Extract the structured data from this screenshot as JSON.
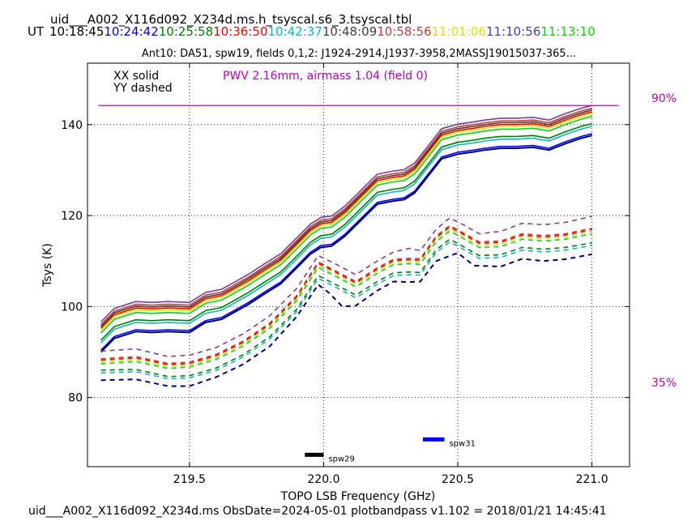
{
  "header": {
    "title": "uid___A002_X116d092_X234d.ms.h_tsyscal.s6_3.tsyscal.tbl",
    "ut_label": "UT",
    "ut_times": [
      {
        "text": "10:18:45",
        "color": "#000000"
      },
      {
        "text": "10:24:42",
        "color": "#0000ff"
      },
      {
        "text": "10:25:58",
        "color": "#008000"
      },
      {
        "text": "10:36:50",
        "color": "#ff0000"
      },
      {
        "text": "10:42:37",
        "color": "#00bfbf"
      },
      {
        "text": "10:48:09",
        "color": "#404040"
      },
      {
        "text": "10:58:56",
        "color": "#c04040"
      },
      {
        "text": "11:01:06",
        "color": "#e0e000"
      },
      {
        "text": "11:10:56",
        "color": "#4040c0"
      },
      {
        "text": "11:13:10",
        "color": "#00e000"
      }
    ],
    "subtitle": "Ant10: DA51,  spw19,  fields 0,1,2: J1924-2914,J1937-3958,2MASSJ19015037-365..."
  },
  "legend": {
    "xx": "XX solid",
    "yy": "YY dashed",
    "pwv": "PWV 2.16mm, airmass 1.04 (field 0)"
  },
  "right_labels": {
    "top": "90%",
    "bottom": "35%"
  },
  "footer": "uid___A002_X116d092_X234d.ms  ObsDate=2024-05-01   plotbandpass v1.102 = 2018/01/21 14:45:41",
  "chart_data": {
    "type": "line",
    "xlabel": "TOPO LSB Frequency (GHz)",
    "ylabel": "Tsys (K)",
    "xlim": [
      219.12,
      221.14
    ],
    "ylim": [
      64.8,
      153.5
    ],
    "xticks": [
      219.5,
      220.0,
      220.5,
      221.0
    ],
    "xtick_labels": [
      "219.5",
      "220.0",
      "220.5",
      "221.0"
    ],
    "yticks": [
      80,
      100,
      120,
      140
    ],
    "ytick_labels": [
      "80",
      "100",
      "120",
      "140"
    ],
    "grid": true,
    "pwv_line": {
      "y": 144.2,
      "x": [
        219.16,
        221.1
      ],
      "color": "#c000c0"
    },
    "markers": [
      {
        "label": "spw29",
        "x": [
          219.93,
          220.0
        ],
        "y": 67.4,
        "color": "#000000"
      },
      {
        "label": "spw31",
        "x": [
          220.37,
          220.45
        ],
        "y": 70.8,
        "color": "#0000ff"
      }
    ],
    "shape_x": [
      219.17,
      219.22,
      219.3,
      219.36,
      219.42,
      219.5,
      219.56,
      219.62,
      219.66,
      219.72,
      219.78,
      219.84,
      219.9,
      219.95,
      219.99,
      220.03,
      220.08,
      220.14,
      220.2,
      220.26,
      220.3,
      220.34,
      220.38,
      220.44,
      220.5,
      220.56,
      220.6,
      220.66,
      220.72,
      220.78,
      220.84,
      220.9,
      220.96,
      221.0
    ],
    "solid_shape": [
      0,
      3,
      4.5,
      4.3,
      4.5,
      4.3,
      6.5,
      7.2,
      8.5,
      10.5,
      12.8,
      15,
      18.5,
      21.5,
      23,
      23.3,
      25.5,
      29,
      32.5,
      33.2,
      33.5,
      35,
      38,
      42.5,
      43.5,
      44,
      44.4,
      44.8,
      44.8,
      45,
      44.4,
      45.8,
      47,
      47.6
    ],
    "series": [
      {
        "style": "solid",
        "color": "#7b3fa0",
        "offset": 96.6
      },
      {
        "style": "solid",
        "color": "#c04040",
        "offset": 96.0
      },
      {
        "style": "solid",
        "color": "#404040",
        "offset": 95.6
      },
      {
        "style": "solid",
        "color": "#ff0000",
        "offset": 95.2
      },
      {
        "style": "solid",
        "color": "#e0e000",
        "offset": 94.8
      },
      {
        "style": "solid",
        "color": "#00e000",
        "offset": 94.2
      },
      {
        "style": "solid",
        "color": "#008000",
        "offset": 92.6
      },
      {
        "style": "solid",
        "color": "#00bfbf",
        "offset": 92.0
      },
      {
        "style": "solid",
        "color": "#0000ff",
        "offset": 90.4
      },
      {
        "style": "solid",
        "color": "#000080",
        "offset": 90.0
      },
      {
        "style": "dashed",
        "color": "#7b3fa0",
        "x": [
          219.17,
          219.3,
          219.42,
          219.5,
          219.6,
          219.7,
          219.8,
          219.9,
          219.98,
          220.04,
          220.12,
          220.2,
          220.26,
          220.32,
          220.36,
          220.42,
          220.47,
          220.52,
          220.58,
          220.66,
          220.74,
          220.82,
          220.9,
          221.0
        ],
        "y": [
          90.2,
          90.7,
          89.0,
          89.3,
          91.0,
          94.0,
          98.0,
          104.0,
          111.2,
          109.5,
          107.0,
          110.0,
          112.0,
          112.8,
          112.3,
          117.0,
          119.5,
          118.0,
          116.0,
          116.5,
          118.3,
          118.0,
          118.5,
          119.8
        ]
      },
      {
        "style": "dashed",
        "color": "#c04040",
        "x": [
          219.17,
          219.3,
          219.42,
          219.5,
          219.6,
          219.7,
          219.8,
          219.9,
          219.98,
          220.04,
          220.12,
          220.2,
          220.26,
          220.32,
          220.36,
          220.42,
          220.47,
          220.52,
          220.58,
          220.66,
          220.74,
          220.82,
          220.9,
          221.0
        ],
        "y": [
          88.5,
          89.0,
          87.5,
          87.8,
          89.5,
          92.4,
          96.4,
          102.4,
          109.8,
          108.0,
          105.5,
          108.5,
          110.4,
          110.6,
          110.5,
          115.5,
          117.8,
          116.2,
          114.2,
          114.4,
          116.0,
          115.6,
          116.0,
          117.2
        ]
      },
      {
        "style": "dashed",
        "color": "#ff0000",
        "x": [
          219.17,
          219.3,
          219.42,
          219.5,
          219.6,
          219.7,
          219.8,
          219.9,
          219.98,
          220.04,
          220.12,
          220.2,
          220.26,
          220.32,
          220.36,
          220.42,
          220.47,
          220.52,
          220.58,
          220.66,
          220.74,
          220.82,
          220.9,
          221.0
        ],
        "y": [
          88.2,
          88.7,
          87.2,
          87.5,
          89.2,
          92.1,
          96.1,
          102.1,
          109.5,
          107.7,
          105.2,
          108.2,
          110.1,
          110.3,
          110.2,
          115.2,
          117.5,
          115.9,
          113.9,
          114.1,
          115.7,
          115.3,
          115.7,
          116.9
        ]
      },
      {
        "style": "dashed",
        "color": "#e0e000",
        "x": [
          219.17,
          219.3,
          219.42,
          219.5,
          219.6,
          219.7,
          219.8,
          219.9,
          219.98,
          220.04,
          220.12,
          220.2,
          220.26,
          220.32,
          220.36,
          220.42,
          220.47,
          220.52,
          220.58,
          220.66,
          220.74,
          220.82,
          220.9,
          221.0
        ],
        "y": [
          87.8,
          88.3,
          86.8,
          87.1,
          88.8,
          91.7,
          95.7,
          101.7,
          109.1,
          107.3,
          104.8,
          107.8,
          109.7,
          109.9,
          109.8,
          114.8,
          117.1,
          115.5,
          113.5,
          113.7,
          115.3,
          114.9,
          115.3,
          116.5
        ]
      },
      {
        "style": "dashed",
        "color": "#00e000",
        "x": [
          219.17,
          219.3,
          219.42,
          219.5,
          219.6,
          219.7,
          219.8,
          219.9,
          219.98,
          220.04,
          220.12,
          220.2,
          220.26,
          220.32,
          220.36,
          220.42,
          220.47,
          220.52,
          220.58,
          220.66,
          220.74,
          220.82,
          220.9,
          221.0
        ],
        "y": [
          87.4,
          87.9,
          86.4,
          86.7,
          88.4,
          91.3,
          95.3,
          101.3,
          108.6,
          106.8,
          104.3,
          107.3,
          109.2,
          109.4,
          109.3,
          114.3,
          116.6,
          115.0,
          113.0,
          113.2,
          114.8,
          114.4,
          114.8,
          116.0
        ]
      },
      {
        "style": "dashed",
        "color": "#008000",
        "x": [
          219.17,
          219.3,
          219.42,
          219.5,
          219.6,
          219.7,
          219.8,
          219.9,
          219.98,
          220.04,
          220.12,
          220.2,
          220.26,
          220.32,
          220.36,
          220.42,
          220.47,
          220.52,
          220.58,
          220.66,
          220.74,
          220.82,
          220.9,
          221.0
        ],
        "y": [
          86.0,
          86.2,
          84.6,
          84.8,
          86.5,
          89.4,
          93.4,
          99.4,
          106.8,
          105.0,
          102.5,
          105.5,
          107.4,
          107.6,
          107.5,
          112.5,
          114.8,
          113.2,
          111.2,
          111.4,
          113.0,
          112.6,
          113.0,
          114.0
        ]
      },
      {
        "style": "dashed",
        "color": "#00bfbf",
        "x": [
          219.17,
          219.3,
          219.42,
          219.5,
          219.6,
          219.7,
          219.8,
          219.9,
          219.98,
          220.04,
          220.12,
          220.2,
          220.26,
          220.32,
          220.36,
          220.42,
          220.47,
          220.52,
          220.58,
          220.66,
          220.74,
          220.82,
          220.9,
          221.0
        ],
        "y": [
          85.4,
          85.7,
          84.1,
          84.3,
          86.0,
          88.9,
          92.9,
          98.9,
          106.2,
          104.4,
          101.9,
          104.9,
          106.8,
          107.0,
          106.9,
          111.9,
          114.2,
          112.6,
          110.6,
          110.8,
          112.4,
          112.0,
          112.4,
          113.4
        ]
      },
      {
        "style": "dashed",
        "color": "#000080",
        "x": [
          219.17,
          219.3,
          219.42,
          219.5,
          219.6,
          219.7,
          219.8,
          219.9,
          219.98,
          220.02,
          220.07,
          220.12,
          220.2,
          220.26,
          220.32,
          220.36,
          220.42,
          220.5,
          220.56,
          220.66,
          220.74,
          220.82,
          220.9,
          221.0
        ],
        "y": [
          83.8,
          84.0,
          82.5,
          82.5,
          84.5,
          87.3,
          91.3,
          97.8,
          104.8,
          103.0,
          100.0,
          100.2,
          103.5,
          105.5,
          105.4,
          105.5,
          110.0,
          111.8,
          109.0,
          108.8,
          110.5,
          110.0,
          110.4,
          111.5
        ]
      }
    ]
  }
}
